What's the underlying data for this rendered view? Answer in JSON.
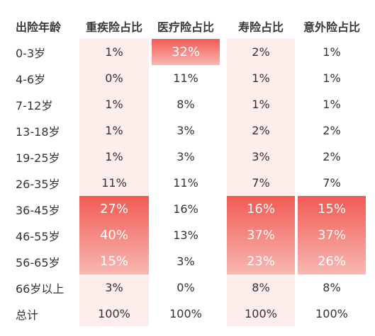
{
  "chart_data": {
    "type": "table",
    "columns": [
      "出险年龄",
      "重疾险占比",
      "医疗险占比",
      "寿险占比",
      "意外险占比"
    ],
    "rows": [
      [
        "0-3岁",
        "1%",
        "32%",
        "2%",
        "1%"
      ],
      [
        "4-6岁",
        "0%",
        "11%",
        "1%",
        "1%"
      ],
      [
        "7-12岁",
        "1%",
        "8%",
        "1%",
        "1%"
      ],
      [
        "13-18岁",
        "1%",
        "3%",
        "2%",
        "2%"
      ],
      [
        "19-25岁",
        "1%",
        "3%",
        "3%",
        "2%"
      ],
      [
        "26-35岁",
        "11%",
        "11%",
        "7%",
        "7%"
      ],
      [
        "36-45岁",
        "27%",
        "16%",
        "16%",
        "15%"
      ],
      [
        "46-55岁",
        "40%",
        "13%",
        "37%",
        "37%"
      ],
      [
        "56-65岁",
        "15%",
        "3%",
        "23%",
        "26%"
      ],
      [
        "66岁以上",
        "3%",
        "0%",
        "8%",
        "8%"
      ],
      [
        "总计",
        "100%",
        "100%",
        "100%",
        "100%"
      ]
    ],
    "highlighted_cells": [
      [
        0,
        2
      ],
      [
        6,
        1
      ],
      [
        7,
        1
      ],
      [
        8,
        1
      ],
      [
        6,
        3
      ],
      [
        7,
        3
      ],
      [
        8,
        3
      ],
      [
        6,
        4
      ],
      [
        7,
        4
      ],
      [
        8,
        4
      ]
    ],
    "colors": {
      "highlight_top": "#f15a54",
      "highlight_bottom": "#f9b8b2",
      "column_shade": "#fdeeec",
      "text": "#333333",
      "highlight_text": "#ffffff"
    }
  }
}
